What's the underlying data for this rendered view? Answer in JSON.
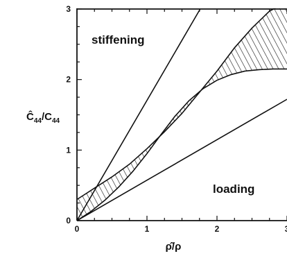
{
  "chart_data": {
    "type": "line",
    "title": "",
    "xlabel": "ρ̂/ρ",
    "ylabel": {
      "main": "Ĉ",
      "sub1": "44",
      "sep": "/C",
      "sub2": "44"
    },
    "xlim": [
      0,
      3
    ],
    "ylim": [
      0,
      3
    ],
    "x_ticks": [
      "0",
      "1",
      "2",
      "3"
    ],
    "y_ticks": [
      "0",
      "1",
      "2",
      "3"
    ],
    "grid": false,
    "annotations": {
      "stiffening": "stiffening",
      "loading": "loading"
    },
    "series": [
      {
        "x": [
          0,
          1.76
        ],
        "y": [
          0,
          3.0
        ]
      },
      {
        "x": [
          0,
          3.0
        ],
        "y": [
          0,
          1.72
        ]
      },
      {
        "x": [
          0,
          0.2,
          0.4,
          0.6,
          0.8,
          1.0,
          1.2,
          1.4,
          1.6,
          1.8,
          2.0,
          2.2,
          2.4,
          2.6,
          2.8,
          3.0
        ],
        "y": [
          0,
          0.13,
          0.29,
          0.48,
          0.7,
          0.95,
          1.22,
          1.48,
          1.7,
          1.87,
          1.99,
          2.07,
          2.12,
          2.14,
          2.15,
          2.15
        ]
      },
      {
        "x": [
          0,
          0.25,
          0.5,
          0.75,
          1.0,
          1.25,
          1.5,
          1.75,
          2.0,
          2.25,
          2.5,
          2.75,
          3.0
        ],
        "y": [
          0.3,
          0.46,
          0.62,
          0.8,
          1.02,
          1.26,
          1.52,
          1.82,
          2.12,
          2.45,
          2.73,
          2.97,
          3.1
        ]
      }
    ],
    "shaded_region": "between series 3 and series 4"
  }
}
